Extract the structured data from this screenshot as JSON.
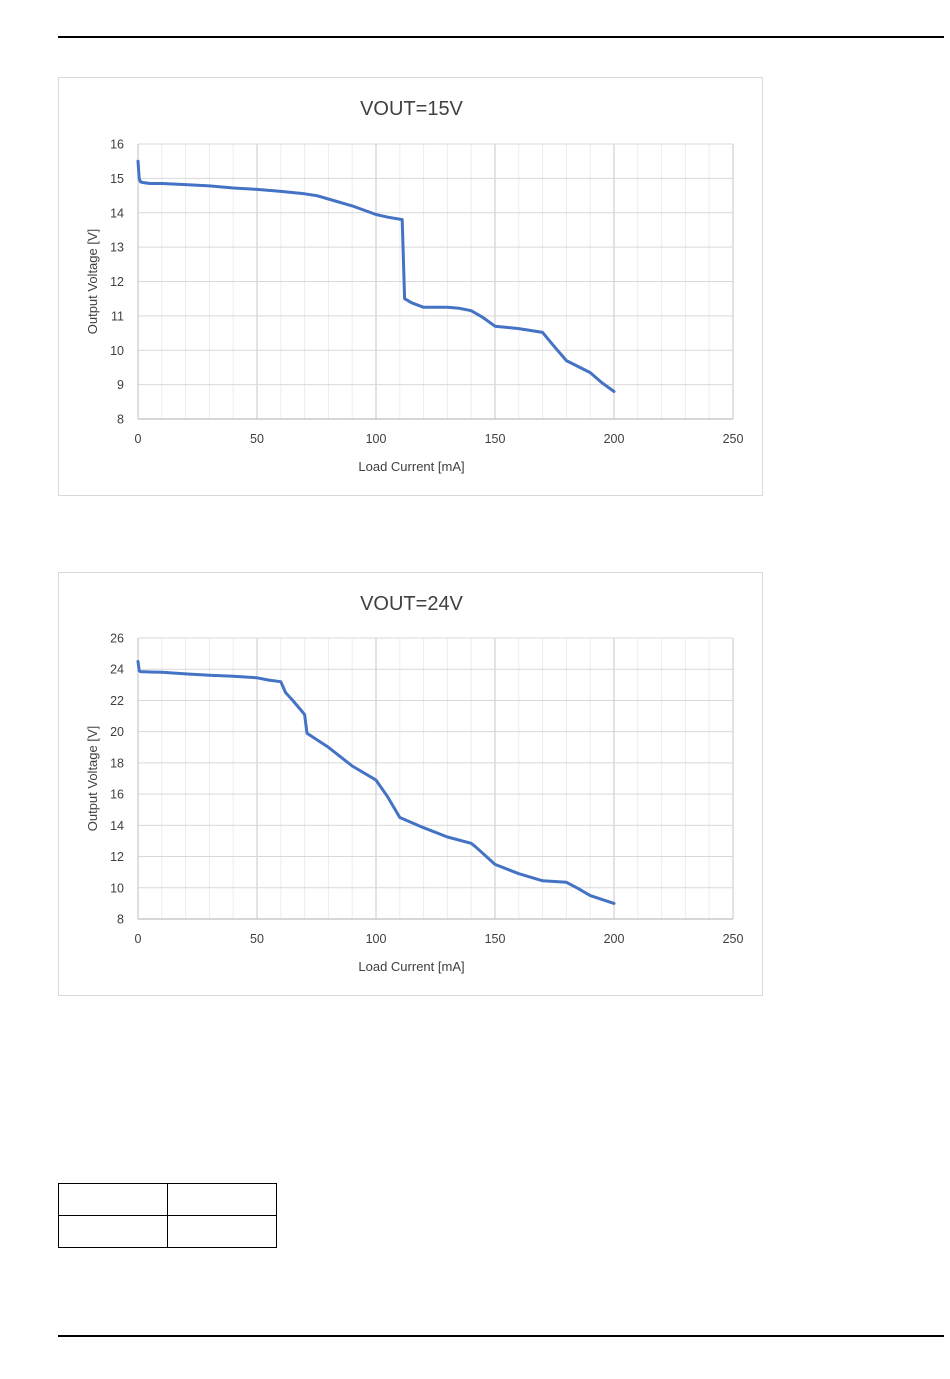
{
  "chart_data": [
    {
      "type": "line",
      "title": "VOUT=15V",
      "xlabel": "Load Current [mA]",
      "ylabel": "Output Voltage [V]",
      "xlim": [
        0,
        250
      ],
      "ylim": [
        8,
        16
      ],
      "xticks": [
        0,
        50,
        100,
        150,
        200,
        250
      ],
      "yticks": [
        8,
        9,
        10,
        11,
        12,
        13,
        14,
        15,
        16
      ],
      "x_minor_step": 10,
      "grid": true,
      "color": "#4472C4",
      "series": [
        {
          "x": [
            0,
            0.5,
            1,
            2,
            5,
            10,
            20,
            30,
            40,
            50,
            60,
            70,
            75,
            80,
            90,
            100,
            105,
            111,
            112,
            115,
            120,
            125,
            130,
            135,
            140,
            145,
            150,
            160,
            170,
            175,
            180,
            190,
            195,
            200
          ],
          "y": [
            15.5,
            15.0,
            14.9,
            14.88,
            14.85,
            14.85,
            14.82,
            14.78,
            14.72,
            14.68,
            14.62,
            14.55,
            14.5,
            14.4,
            14.2,
            13.95,
            13.87,
            13.8,
            11.5,
            11.38,
            11.25,
            11.25,
            11.25,
            11.22,
            11.15,
            10.95,
            10.7,
            10.63,
            10.52,
            10.1,
            9.7,
            9.35,
            9.05,
            8.8
          ]
        }
      ]
    },
    {
      "type": "line",
      "title": "VOUT=24V",
      "xlabel": "Load Current  [mA]",
      "ylabel": "Output Voltage [V]",
      "xlim": [
        0,
        250
      ],
      "ylim": [
        8,
        26
      ],
      "xticks": [
        0,
        50,
        100,
        150,
        200,
        250
      ],
      "yticks": [
        8,
        10,
        12,
        14,
        16,
        18,
        20,
        22,
        24,
        26
      ],
      "x_minor_step": 10,
      "grid": true,
      "color": "#4472C4",
      "series": [
        {
          "x": [
            0,
            0.5,
            1,
            5,
            10,
            20,
            30,
            40,
            50,
            55,
            60,
            62,
            65,
            70,
            71,
            75,
            80,
            90,
            100,
            105,
            110,
            120,
            130,
            140,
            142,
            150,
            160,
            170,
            180,
            185,
            190,
            200
          ],
          "y": [
            24.5,
            23.9,
            23.85,
            23.82,
            23.8,
            23.7,
            23.62,
            23.55,
            23.45,
            23.3,
            23.2,
            22.5,
            22.0,
            21.1,
            19.9,
            19.5,
            19.0,
            17.8,
            16.9,
            15.8,
            14.5,
            13.85,
            13.25,
            12.85,
            12.6,
            11.5,
            10.9,
            10.45,
            10.35,
            9.95,
            9.5,
            9.0
          ]
        }
      ]
    }
  ]
}
